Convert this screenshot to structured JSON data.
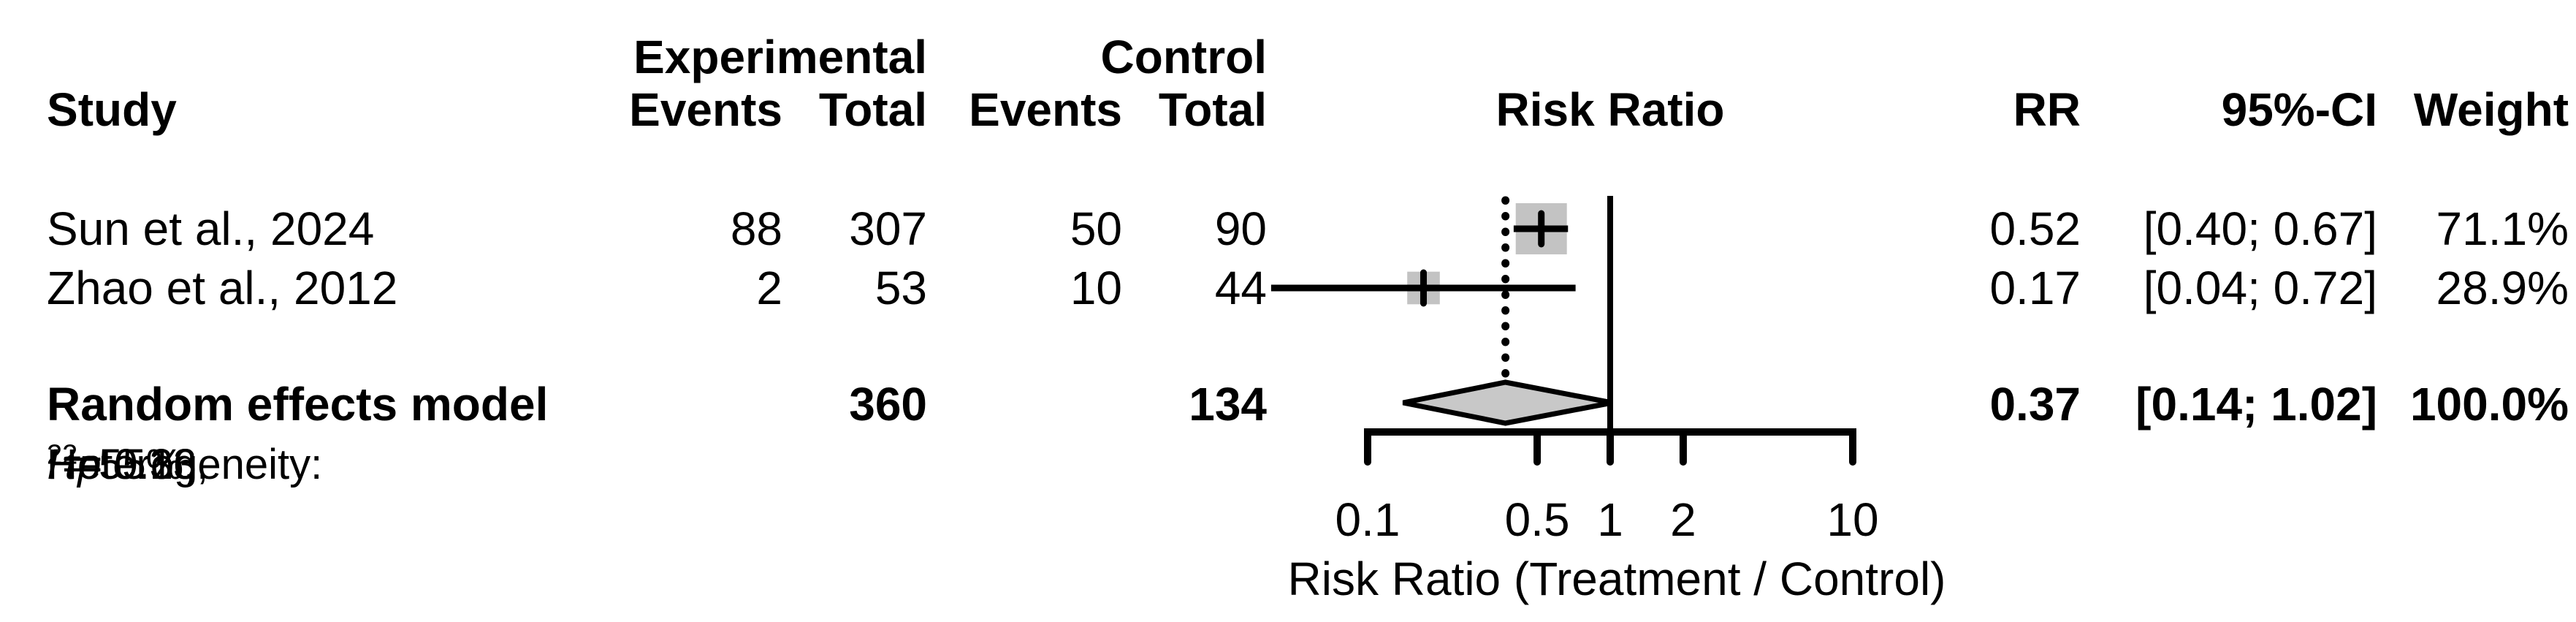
{
  "headers": {
    "group_experimental": "Experimental",
    "group_control": "Control",
    "study": "Study",
    "events": "Events",
    "total": "Total",
    "plot_title": "Risk Ratio",
    "rr": "RR",
    "ci": "95%-CI",
    "weight": "Weight"
  },
  "chart_data": {
    "type": "forest",
    "effect_measure": "RR",
    "studies": [
      {
        "study": "Sun et al., 2024",
        "experimental_events": "88",
        "experimental_total": "307",
        "control_events": "50",
        "control_total": "90",
        "rr": 0.52,
        "ci_lower": 0.4,
        "ci_upper": 0.67,
        "rr_text": "0.52",
        "ci_text": "[0.40; 0.67]",
        "weight_text": "71.1%",
        "weight_pct": 71.1
      },
      {
        "study": "Zhao et al., 2012",
        "experimental_events": "2",
        "experimental_total": "53",
        "control_events": "10",
        "control_total": "44",
        "rr": 0.17,
        "ci_lower": 0.04,
        "ci_upper": 0.72,
        "rr_text": "0.17",
        "ci_text": "[0.04; 0.72]",
        "weight_text": "28.9%",
        "weight_pct": 28.9
      }
    ],
    "pooled": {
      "label": "Random effects model",
      "experimental_total": "360",
      "control_total": "134",
      "rr": 0.37,
      "ci_lower": 0.14,
      "ci_upper": 1.02,
      "rr_text": "0.37",
      "ci_text": "[0.14; 1.02]",
      "weight_text": "100.0%"
    },
    "heterogeneity": {
      "prefix": "Heterogeneity: ",
      "i_sym": "I",
      "sup": "2",
      "i_rest": " = 55%, ",
      "tau_sym": "τ",
      "tau_rest": " = 0.36, ",
      "p_sym": "p",
      "p_rest": " = 0.13"
    },
    "axis": {
      "scale": "log",
      "reference_line": 1,
      "ticks": [
        0.1,
        0.5,
        1,
        2,
        10
      ],
      "tick_labels": [
        "0.1",
        "0.5",
        "1",
        "2",
        "10"
      ],
      "label": "Risk Ratio (Treatment / Control)"
    },
    "colors": {
      "marker_fill": "#c3c3c3",
      "diamond_fill": "#c8c8c8",
      "line": "#000000"
    }
  }
}
